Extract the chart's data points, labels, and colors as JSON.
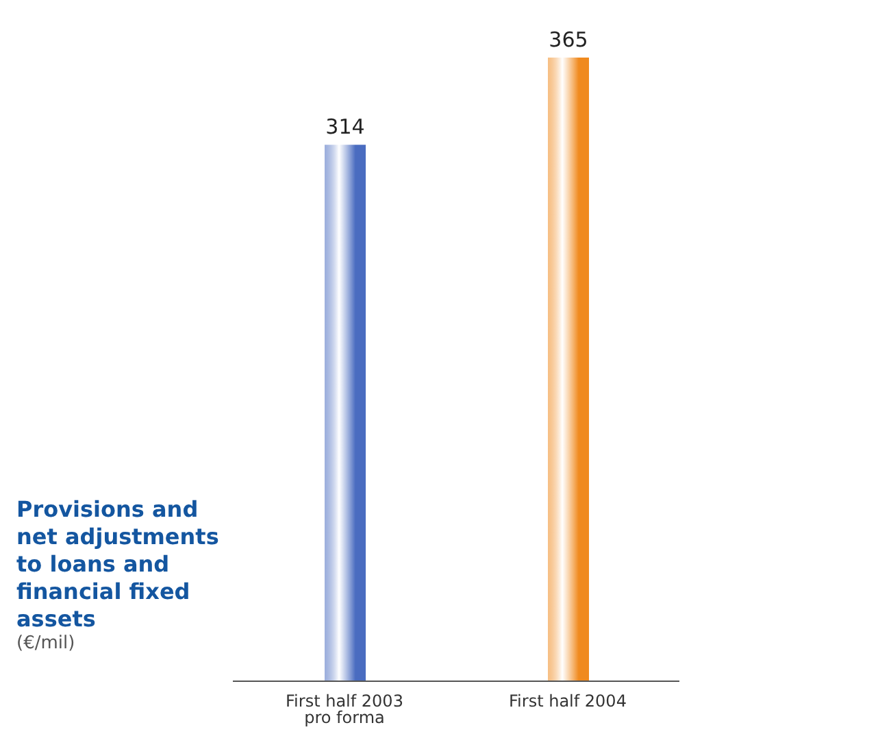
{
  "chart_data": {
    "type": "bar",
    "title": "Provisions and net adjustments to loans and financial fixed assets",
    "subtitle": "(€/mil)",
    "categories": [
      "First half 2003 pro forma",
      "First half 2004"
    ],
    "values": [
      314,
      365
    ],
    "colors": [
      "#4a6cc0",
      "#f08a1e"
    ],
    "data_labels": true
  }
}
